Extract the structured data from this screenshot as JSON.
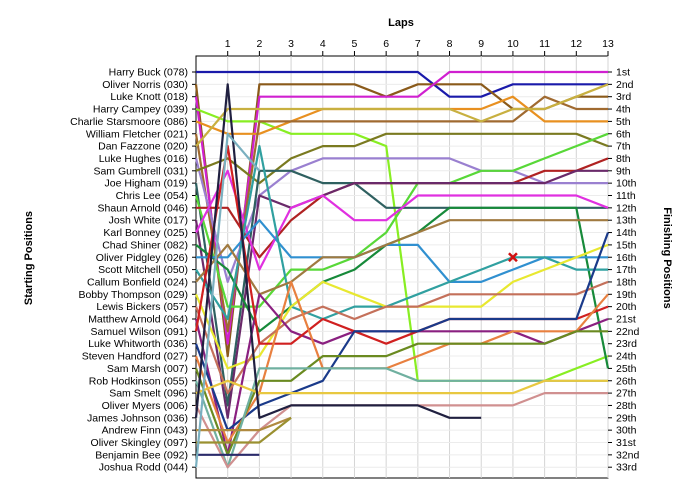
{
  "chart_data": {
    "type": "line",
    "title": "",
    "xlabel": "Laps",
    "ylabel_left": "Starting Positions",
    "ylabel_right": "Finishing Positions",
    "laps": [
      1,
      2,
      3,
      4,
      5,
      6,
      7,
      8,
      9,
      10,
      11,
      12,
      13
    ],
    "xlim": [
      0,
      13
    ],
    "ylim": [
      1,
      33
    ],
    "grid": true,
    "finishing_positions": [
      "1st",
      "2nd",
      "3rd",
      "4th",
      "5th",
      "6th",
      "7th",
      "8th",
      "9th",
      "10th",
      "11th",
      "12th",
      "13th",
      "14th",
      "15th",
      "16th",
      "17th",
      "18th",
      "19th",
      "20th",
      "21st",
      "22nd",
      "23rd",
      "24th",
      "25th",
      "26th",
      "27th",
      "28th",
      "29th",
      "30th",
      "31st",
      "32nd",
      "33rd"
    ],
    "drivers": [
      {
        "name": "Harry Buck (078)",
        "color": "#1a1aaa",
        "positions": [
          1,
          1,
          1,
          1,
          1,
          1,
          1,
          3,
          3,
          2,
          2,
          2,
          2
        ]
      },
      {
        "name": "Oliver Norris (030)",
        "color": "#8a5a1a",
        "positions": [
          24,
          2,
          2,
          2,
          2,
          3,
          2,
          2,
          2,
          4,
          4,
          3,
          3
        ]
      },
      {
        "name": "Luke Knott (018)",
        "color": "#d020d0",
        "positions": [
          23,
          3,
          3,
          3,
          3,
          3,
          3,
          1,
          1,
          1,
          1,
          1,
          1
        ]
      },
      {
        "name": "Harry Campey (039)",
        "color": "#88ee22",
        "positions": [
          5,
          5,
          6,
          6,
          6,
          7,
          26,
          26,
          26,
          26,
          26,
          25,
          24
        ]
      },
      {
        "name": "Charlie Starsmoore (086)",
        "color": "#e89020",
        "positions": [
          6,
          6,
          5,
          4,
          4,
          4,
          4,
          4,
          4,
          3,
          5,
          5,
          5
        ]
      },
      {
        "name": "William Fletcher (021)",
        "color": "#a06a30",
        "positions": [
          22,
          5,
          5,
          5,
          5,
          5,
          5,
          5,
          5,
          5,
          3,
          4,
          4
        ]
      },
      {
        "name": "Dan Fazzone (020)",
        "color": "#c8b040",
        "positions": [
          4,
          4,
          4,
          4,
          4,
          4,
          4,
          4,
          5,
          4,
          4,
          3,
          2
        ]
      },
      {
        "name": "Luke Hughes (016)",
        "color": "#9a80d0",
        "positions": [
          18,
          11,
          9,
          8,
          8,
          8,
          8,
          8,
          9,
          9,
          10,
          10,
          10
        ]
      },
      {
        "name": "Sam Gumbrell (031)",
        "color": "#7a7a20",
        "positions": [
          8,
          10,
          8,
          7,
          7,
          6,
          6,
          6,
          6,
          6,
          6,
          6,
          7
        ]
      },
      {
        "name": "Joe Higham (019)",
        "color": "#2f6060",
        "positions": [
          28,
          9,
          9,
          10,
          10,
          12,
          12,
          12,
          12,
          12,
          12,
          12,
          12
        ]
      },
      {
        "name": "Chris Lee (054)",
        "color": "#58d838",
        "positions": [
          20,
          20,
          17,
          17,
          16,
          14,
          10,
          10,
          9,
          9,
          8,
          7,
          6
        ]
      },
      {
        "name": "Shaun Arnold (046)",
        "color": "#b02222",
        "positions": [
          12,
          16,
          13,
          11,
          10,
          10,
          10,
          10,
          10,
          10,
          9,
          9,
          8
        ]
      },
      {
        "name": "Josh White (017)",
        "color": "#6a2a6a",
        "positions": [
          29,
          11,
          12,
          11,
          10,
          10,
          10,
          10,
          10,
          10,
          10,
          9,
          9
        ]
      },
      {
        "name": "Karl Bonney (025)",
        "color": "#e030e0",
        "positions": [
          9,
          17,
          12,
          11,
          13,
          13,
          11,
          11,
          11,
          11,
          11,
          11,
          12
        ]
      },
      {
        "name": "Chad Shiner (082)",
        "color": "#178a3a",
        "positions": [
          17,
          22,
          20,
          18,
          17,
          15,
          14,
          12,
          12,
          12,
          12,
          12,
          25
        ]
      },
      {
        "name": "Oliver Pidgley (026)",
        "color": "#3090d0",
        "positions": [
          16,
          13,
          16,
          16,
          16,
          15,
          15,
          18,
          18,
          17,
          16,
          16,
          16
        ]
      },
      {
        "name": "Scott Mitchell (050)",
        "color": "#30a0a0",
        "positions": [
          21,
          7,
          20,
          21,
          20,
          20,
          19,
          18,
          17,
          16,
          16,
          17,
          17
        ]
      },
      {
        "name": "Callum Bonfield (024)",
        "color": "#a07a40",
        "positions": [
          15,
          19,
          18,
          16,
          16,
          15,
          14,
          13,
          13,
          13,
          13,
          13,
          13
        ]
      },
      {
        "name": "Bobby Thompson (029)",
        "color": "#e8e830",
        "positions": [
          25,
          24,
          20,
          18,
          19,
          20,
          20,
          20,
          20,
          18,
          17,
          16,
          15
        ]
      },
      {
        "name": "Lewis Bickers (057)",
        "color": "#c4705a",
        "positions": [
          27,
          23,
          21,
          20,
          21,
          20,
          20,
          19,
          19,
          19,
          19,
          19,
          18
        ]
      },
      {
        "name": "Matthew Arnold (064)",
        "color": "#8a2080",
        "positions": [
          32,
          19,
          22,
          23,
          22,
          22,
          22,
          22,
          22,
          22,
          23,
          22,
          21
        ]
      },
      {
        "name": "Samuel Wilson (091)",
        "color": "#d02020",
        "positions": [
          7,
          23,
          23,
          21,
          22,
          23,
          22,
          21,
          21,
          21,
          21,
          21,
          20
        ]
      },
      {
        "name": "Luke Whitworth (036)",
        "color": "#1a3a8a",
        "positions": [
          30,
          28,
          27,
          26,
          22,
          22,
          22,
          21,
          21,
          21,
          21,
          21,
          14
        ]
      },
      {
        "name": "Steven Handford (027)",
        "color": "#e88040",
        "positions": [
          31,
          27,
          18,
          25,
          25,
          25,
          24,
          23,
          23,
          22,
          22,
          22,
          19
        ]
      },
      {
        "name": "Sam Marsh (007)",
        "color": "#6a8a20",
        "positions": [
          32,
          26,
          26,
          24,
          24,
          24,
          23,
          23,
          23,
          23,
          23,
          22,
          22
        ]
      },
      {
        "name": "Rob Hodkinson (055)",
        "color": "#70b0a0",
        "positions": [
          33,
          25,
          25,
          25,
          25,
          25,
          26,
          26,
          26,
          26,
          26,
          26,
          26
        ]
      },
      {
        "name": "Sam Smelt (096)",
        "color": "#e8c840",
        "positions": [
          26,
          27,
          27,
          27,
          27,
          27,
          27,
          27,
          27,
          27,
          26,
          26,
          26
        ]
      },
      {
        "name": "Oliver Myers (006)",
        "color": "#d09090",
        "positions": [
          33,
          30,
          28,
          28,
          28,
          28,
          28,
          28,
          28,
          28,
          27,
          27,
          27
        ]
      },
      {
        "name": "James Johnson (036)",
        "color": "#202040",
        "positions": [
          2,
          29,
          28,
          28,
          28,
          28,
          28,
          29,
          29,
          null,
          null,
          null,
          null
        ]
      },
      {
        "name": "Andrew Finn (043)",
        "color": "#b08a40",
        "positions": [
          30,
          30,
          29,
          null,
          null,
          null,
          null,
          null,
          null,
          null,
          null,
          null,
          null
        ]
      },
      {
        "name": "Oliver Skingley (097)",
        "color": "#9a9030",
        "positions": [
          31,
          31,
          29,
          null,
          null,
          null,
          null,
          null,
          null,
          null,
          null,
          null,
          null
        ]
      },
      {
        "name": "Benjamin Bee (092)",
        "color": "#2a2a6a",
        "positions": [
          32,
          32,
          null,
          null,
          null,
          null,
          null,
          null,
          null,
          null,
          null,
          null,
          null
        ]
      },
      {
        "name": "Joshua Rodd (044)",
        "color": "#7ab0c0",
        "positions": [
          6,
          9,
          null,
          null,
          null,
          null,
          null,
          null,
          null,
          null,
          null,
          null,
          null
        ]
      }
    ],
    "annotations": [
      {
        "type": "retirement-marker",
        "lap": 10,
        "position": 16,
        "color": "#d01010"
      }
    ]
  }
}
